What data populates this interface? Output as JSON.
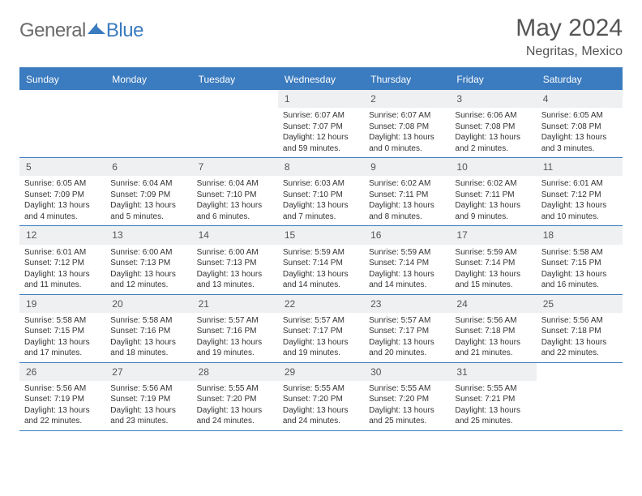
{
  "brand": {
    "part1": "General",
    "part2": "Blue"
  },
  "title": "May 2024",
  "location": "Negritas, Mexico",
  "colors": {
    "accent": "#3b7bbf",
    "header_bg": "#eef0f2",
    "text": "#555555"
  },
  "dayNames": [
    "Sunday",
    "Monday",
    "Tuesday",
    "Wednesday",
    "Thursday",
    "Friday",
    "Saturday"
  ],
  "weeks": [
    [
      {
        "day": "",
        "lines": []
      },
      {
        "day": "",
        "lines": []
      },
      {
        "day": "",
        "lines": []
      },
      {
        "day": "1",
        "lines": [
          "Sunrise: 6:07 AM",
          "Sunset: 7:07 PM",
          "Daylight: 12 hours",
          "and 59 minutes."
        ]
      },
      {
        "day": "2",
        "lines": [
          "Sunrise: 6:07 AM",
          "Sunset: 7:08 PM",
          "Daylight: 13 hours",
          "and 0 minutes."
        ]
      },
      {
        "day": "3",
        "lines": [
          "Sunrise: 6:06 AM",
          "Sunset: 7:08 PM",
          "Daylight: 13 hours",
          "and 2 minutes."
        ]
      },
      {
        "day": "4",
        "lines": [
          "Sunrise: 6:05 AM",
          "Sunset: 7:08 PM",
          "Daylight: 13 hours",
          "and 3 minutes."
        ]
      }
    ],
    [
      {
        "day": "5",
        "lines": [
          "Sunrise: 6:05 AM",
          "Sunset: 7:09 PM",
          "Daylight: 13 hours",
          "and 4 minutes."
        ]
      },
      {
        "day": "6",
        "lines": [
          "Sunrise: 6:04 AM",
          "Sunset: 7:09 PM",
          "Daylight: 13 hours",
          "and 5 minutes."
        ]
      },
      {
        "day": "7",
        "lines": [
          "Sunrise: 6:04 AM",
          "Sunset: 7:10 PM",
          "Daylight: 13 hours",
          "and 6 minutes."
        ]
      },
      {
        "day": "8",
        "lines": [
          "Sunrise: 6:03 AM",
          "Sunset: 7:10 PM",
          "Daylight: 13 hours",
          "and 7 minutes."
        ]
      },
      {
        "day": "9",
        "lines": [
          "Sunrise: 6:02 AM",
          "Sunset: 7:11 PM",
          "Daylight: 13 hours",
          "and 8 minutes."
        ]
      },
      {
        "day": "10",
        "lines": [
          "Sunrise: 6:02 AM",
          "Sunset: 7:11 PM",
          "Daylight: 13 hours",
          "and 9 minutes."
        ]
      },
      {
        "day": "11",
        "lines": [
          "Sunrise: 6:01 AM",
          "Sunset: 7:12 PM",
          "Daylight: 13 hours",
          "and 10 minutes."
        ]
      }
    ],
    [
      {
        "day": "12",
        "lines": [
          "Sunrise: 6:01 AM",
          "Sunset: 7:12 PM",
          "Daylight: 13 hours",
          "and 11 minutes."
        ]
      },
      {
        "day": "13",
        "lines": [
          "Sunrise: 6:00 AM",
          "Sunset: 7:13 PM",
          "Daylight: 13 hours",
          "and 12 minutes."
        ]
      },
      {
        "day": "14",
        "lines": [
          "Sunrise: 6:00 AM",
          "Sunset: 7:13 PM",
          "Daylight: 13 hours",
          "and 13 minutes."
        ]
      },
      {
        "day": "15",
        "lines": [
          "Sunrise: 5:59 AM",
          "Sunset: 7:14 PM",
          "Daylight: 13 hours",
          "and 14 minutes."
        ]
      },
      {
        "day": "16",
        "lines": [
          "Sunrise: 5:59 AM",
          "Sunset: 7:14 PM",
          "Daylight: 13 hours",
          "and 14 minutes."
        ]
      },
      {
        "day": "17",
        "lines": [
          "Sunrise: 5:59 AM",
          "Sunset: 7:14 PM",
          "Daylight: 13 hours",
          "and 15 minutes."
        ]
      },
      {
        "day": "18",
        "lines": [
          "Sunrise: 5:58 AM",
          "Sunset: 7:15 PM",
          "Daylight: 13 hours",
          "and 16 minutes."
        ]
      }
    ],
    [
      {
        "day": "19",
        "lines": [
          "Sunrise: 5:58 AM",
          "Sunset: 7:15 PM",
          "Daylight: 13 hours",
          "and 17 minutes."
        ]
      },
      {
        "day": "20",
        "lines": [
          "Sunrise: 5:58 AM",
          "Sunset: 7:16 PM",
          "Daylight: 13 hours",
          "and 18 minutes."
        ]
      },
      {
        "day": "21",
        "lines": [
          "Sunrise: 5:57 AM",
          "Sunset: 7:16 PM",
          "Daylight: 13 hours",
          "and 19 minutes."
        ]
      },
      {
        "day": "22",
        "lines": [
          "Sunrise: 5:57 AM",
          "Sunset: 7:17 PM",
          "Daylight: 13 hours",
          "and 19 minutes."
        ]
      },
      {
        "day": "23",
        "lines": [
          "Sunrise: 5:57 AM",
          "Sunset: 7:17 PM",
          "Daylight: 13 hours",
          "and 20 minutes."
        ]
      },
      {
        "day": "24",
        "lines": [
          "Sunrise: 5:56 AM",
          "Sunset: 7:18 PM",
          "Daylight: 13 hours",
          "and 21 minutes."
        ]
      },
      {
        "day": "25",
        "lines": [
          "Sunrise: 5:56 AM",
          "Sunset: 7:18 PM",
          "Daylight: 13 hours",
          "and 22 minutes."
        ]
      }
    ],
    [
      {
        "day": "26",
        "lines": [
          "Sunrise: 5:56 AM",
          "Sunset: 7:19 PM",
          "Daylight: 13 hours",
          "and 22 minutes."
        ]
      },
      {
        "day": "27",
        "lines": [
          "Sunrise: 5:56 AM",
          "Sunset: 7:19 PM",
          "Daylight: 13 hours",
          "and 23 minutes."
        ]
      },
      {
        "day": "28",
        "lines": [
          "Sunrise: 5:55 AM",
          "Sunset: 7:20 PM",
          "Daylight: 13 hours",
          "and 24 minutes."
        ]
      },
      {
        "day": "29",
        "lines": [
          "Sunrise: 5:55 AM",
          "Sunset: 7:20 PM",
          "Daylight: 13 hours",
          "and 24 minutes."
        ]
      },
      {
        "day": "30",
        "lines": [
          "Sunrise: 5:55 AM",
          "Sunset: 7:20 PM",
          "Daylight: 13 hours",
          "and 25 minutes."
        ]
      },
      {
        "day": "31",
        "lines": [
          "Sunrise: 5:55 AM",
          "Sunset: 7:21 PM",
          "Daylight: 13 hours",
          "and 25 minutes."
        ]
      },
      {
        "day": "",
        "lines": []
      }
    ]
  ]
}
